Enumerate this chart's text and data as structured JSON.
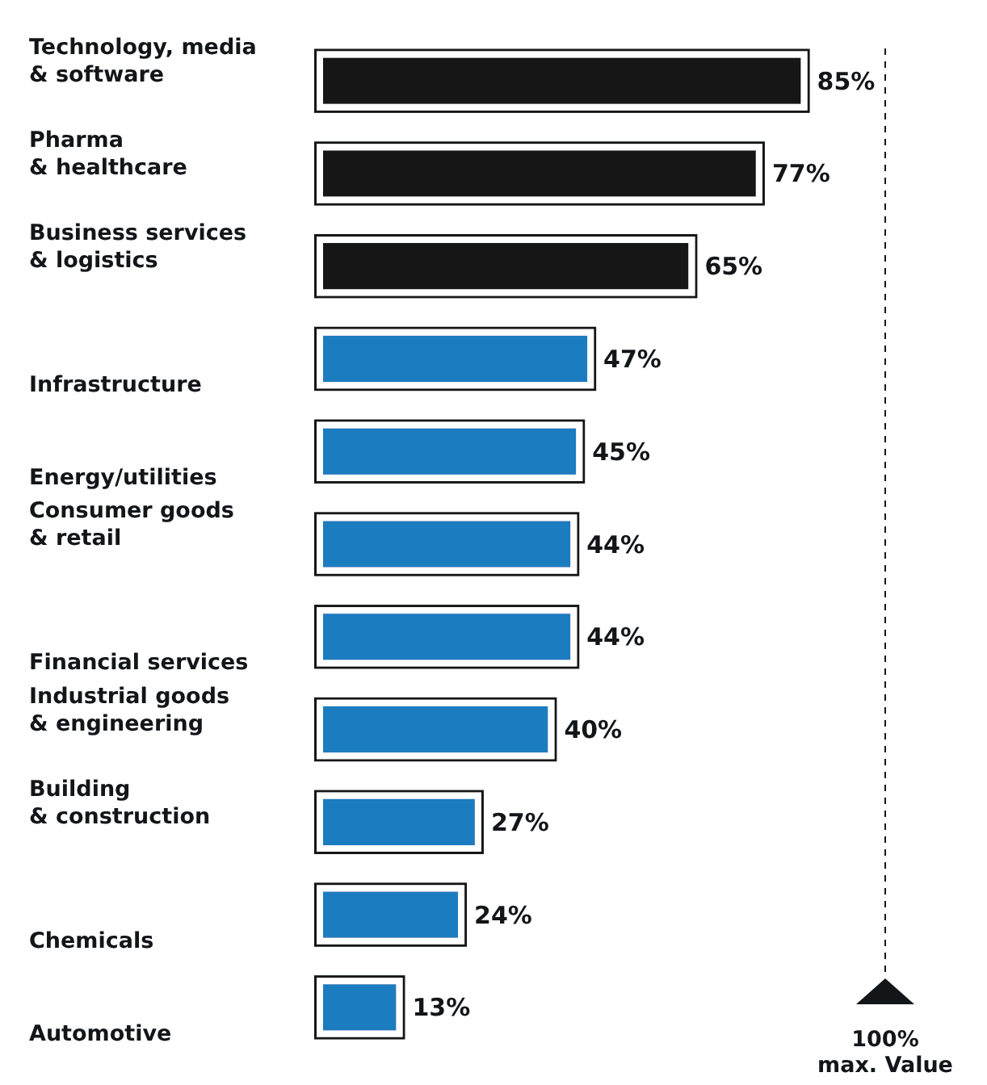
{
  "chart_data": {
    "type": "bar",
    "orientation": "horizontal",
    "categories": [
      "Technology, media\n& software",
      "Pharma\n& healthcare",
      "Business services\n& logistics",
      "Infrastructure",
      "Energy/utilities",
      "Consumer goods\n& retail",
      "Financial services",
      "Industrial goods\n& engineering",
      "Building\n& construction",
      "Chemicals",
      "Automotive"
    ],
    "values": [
      85,
      77,
      65,
      47,
      45,
      44,
      44,
      40,
      27,
      24,
      13
    ],
    "colors": [
      "#121619",
      "#121619",
      "#121619",
      "#1b7bc0",
      "#1b7bc0",
      "#1b7bc0",
      "#1b7bc0",
      "#1b7bc0",
      "#1b7bc0",
      "#1b7bc0",
      "#1b7bc0"
    ],
    "value_labels": [
      "85%",
      "77%",
      "65%",
      "47%",
      "45%",
      "44%",
      "44%",
      "40%",
      "27%",
      "24%",
      "13%"
    ],
    "xlim": [
      0,
      100
    ],
    "tick_labels": "y",
    "ref_lines": [
      {
        "axis": "x",
        "value": 100,
        "label": "100%\nmax. Value",
        "line_style": "dashed",
        "color": "#121619"
      }
    ]
  }
}
